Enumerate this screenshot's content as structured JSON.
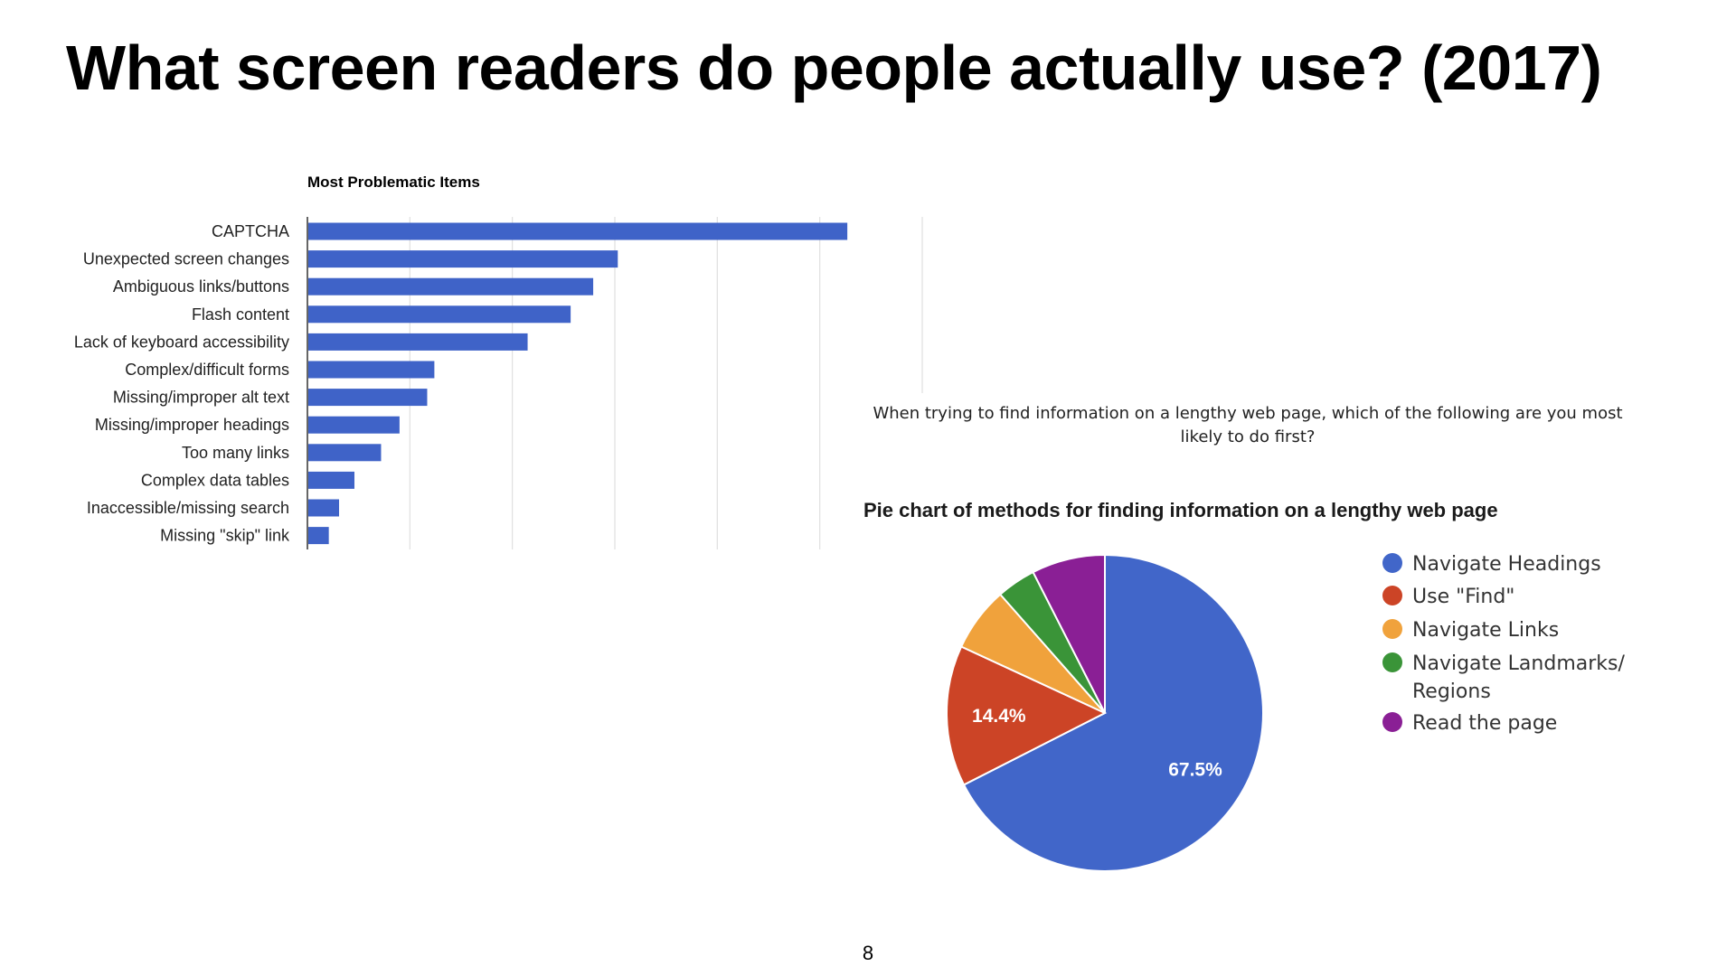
{
  "slide": {
    "title": "What screen readers do people actually use? (2017)",
    "page_number": "8"
  },
  "chart_data": [
    {
      "type": "bar",
      "orientation": "horizontal",
      "title": "Most Problematic Items",
      "categories": [
        "CAPTCHA",
        "Unexpected screen changes",
        "Ambiguous links/buttons",
        "Flash content",
        "Lack of keyboard accessibility",
        "Complex/difficult forms",
        "Missing/improper alt text",
        "Missing/improper headings",
        "Too many links",
        "Complex data tables",
        "Inaccessible/missing search",
        "Missing \"skip\" link"
      ],
      "values": [
        526,
        302,
        278,
        256,
        214,
        123,
        116,
        89,
        71,
        45,
        30,
        20
      ],
      "xlim": [
        0,
        600
      ],
      "grid": true,
      "color": "#3f63c8"
    },
    {
      "type": "pie",
      "question": "When trying to find information on a lengthy web page, which of the following are you most likely to do first?",
      "title": "Pie chart of methods for finding information on a lengthy web page",
      "legend_position": "right",
      "slices": [
        {
          "label": "Navigate Headings",
          "value": 67.5,
          "display_label": "67.5%",
          "color": "#4166c9"
        },
        {
          "label": "Use \"Find\"",
          "value": 14.4,
          "display_label": "14.4%",
          "color": "#cc4426"
        },
        {
          "label": "Navigate Links",
          "value": 6.6,
          "display_label": "",
          "color": "#f0a23c"
        },
        {
          "label": "Navigate Landmarks/ Regions",
          "value": 4.0,
          "display_label": "",
          "color": "#3a9438"
        },
        {
          "label": "Read the page",
          "value": 7.5,
          "display_label": "",
          "color": "#8a1f95"
        }
      ]
    }
  ]
}
